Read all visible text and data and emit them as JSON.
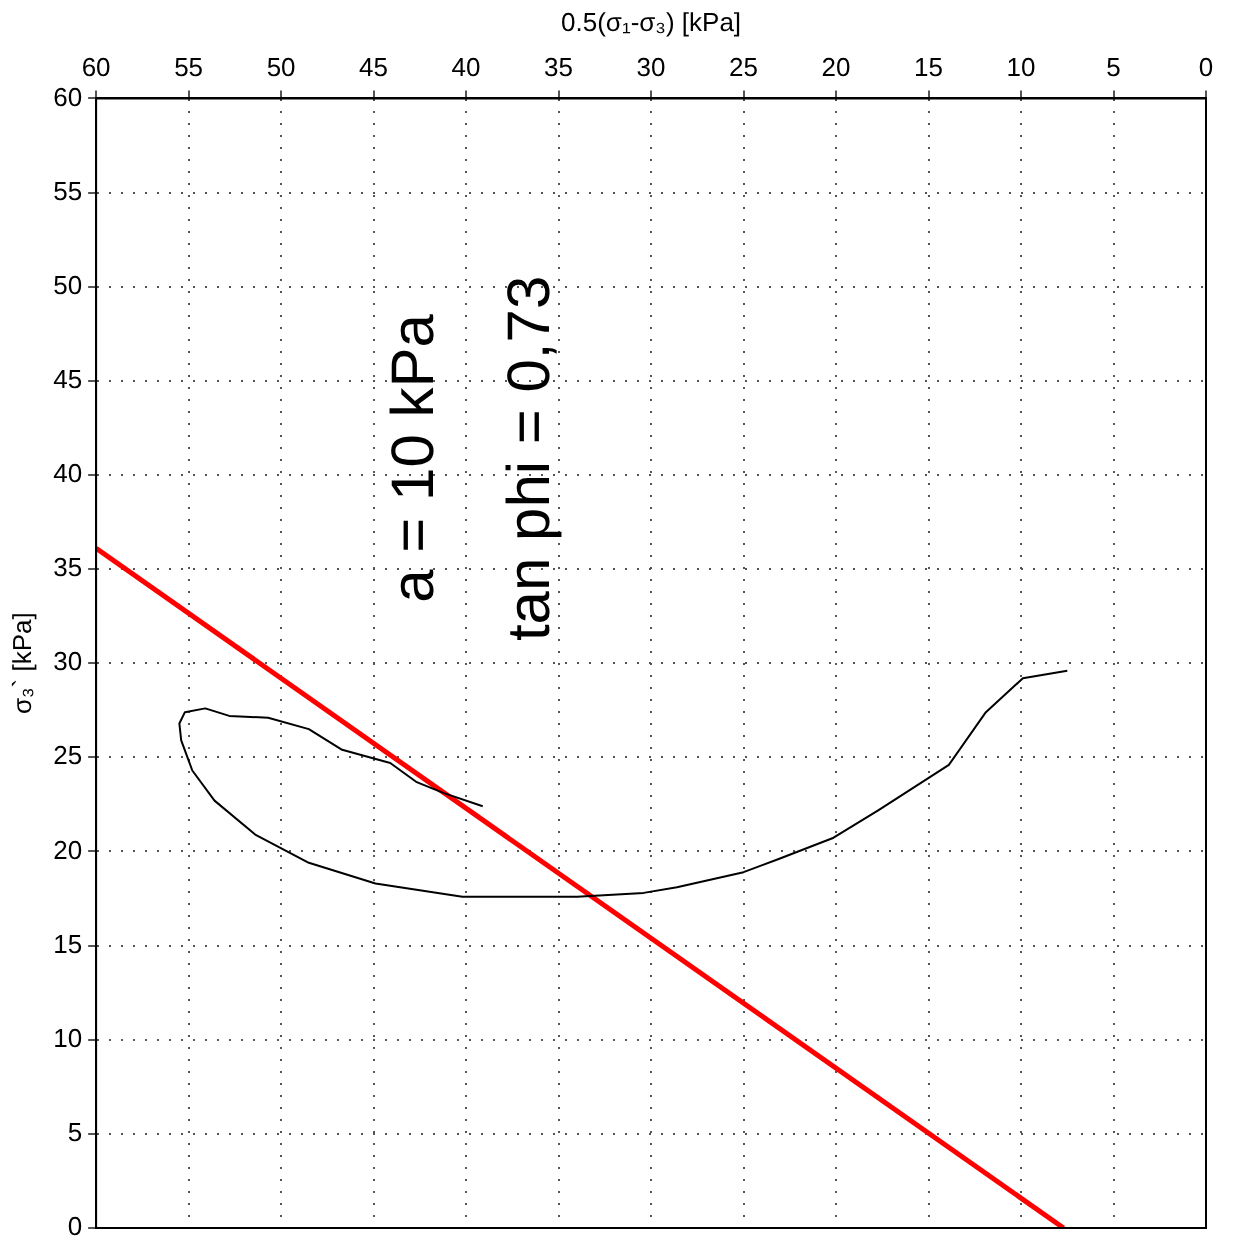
{
  "chart_data": {
    "type": "line",
    "xlabel": "0.5(σ₁-σ₃) [kPa]",
    "ylabel": "σ₃` [kPa]",
    "annotations": [
      "a = 10 kPa",
      "tan phi = 0,73"
    ],
    "xlim": [
      60,
      0
    ],
    "xticks": [
      60,
      55,
      50,
      45,
      40,
      35,
      30,
      25,
      20,
      15,
      10,
      5,
      0
    ],
    "ylim": [
      0,
      60
    ],
    "yticks": [
      0,
      5,
      10,
      15,
      20,
      25,
      30,
      35,
      40,
      45,
      50,
      55,
      60
    ],
    "grid": true,
    "legend": false,
    "marker": "none",
    "line_style": "solid",
    "series": [
      {
        "color": "#000000",
        "x": [
          7.5,
          9.9,
          11.9,
          13.9,
          17.7,
          20.2,
          23.1,
          25.0,
          28.6,
          30.4,
          34.0,
          35.1,
          40.2,
          44.9,
          48.5,
          51.4,
          53.6,
          54.8,
          55.4,
          55.5,
          55.2,
          54.1,
          52.8,
          50.7,
          48.5,
          46.7,
          44.1,
          42.7,
          41.2,
          39.1
        ],
        "values": [
          29.6,
          29.2,
          27.4,
          24.6,
          22.2,
          20.7,
          19.6,
          18.9,
          18.1,
          17.8,
          17.6,
          17.6,
          17.6,
          18.3,
          19.4,
          20.9,
          22.7,
          24.3,
          25.9,
          26.8,
          27.4,
          27.6,
          27.2,
          27.1,
          26.5,
          25.4,
          24.7,
          23.7,
          23.1,
          22.4
        ]
      },
      {
        "type": "line",
        "color": "#ff0000",
        "x": [
          7.7,
          60
        ],
        "values": [
          0,
          36.1
        ]
      }
    ]
  }
}
